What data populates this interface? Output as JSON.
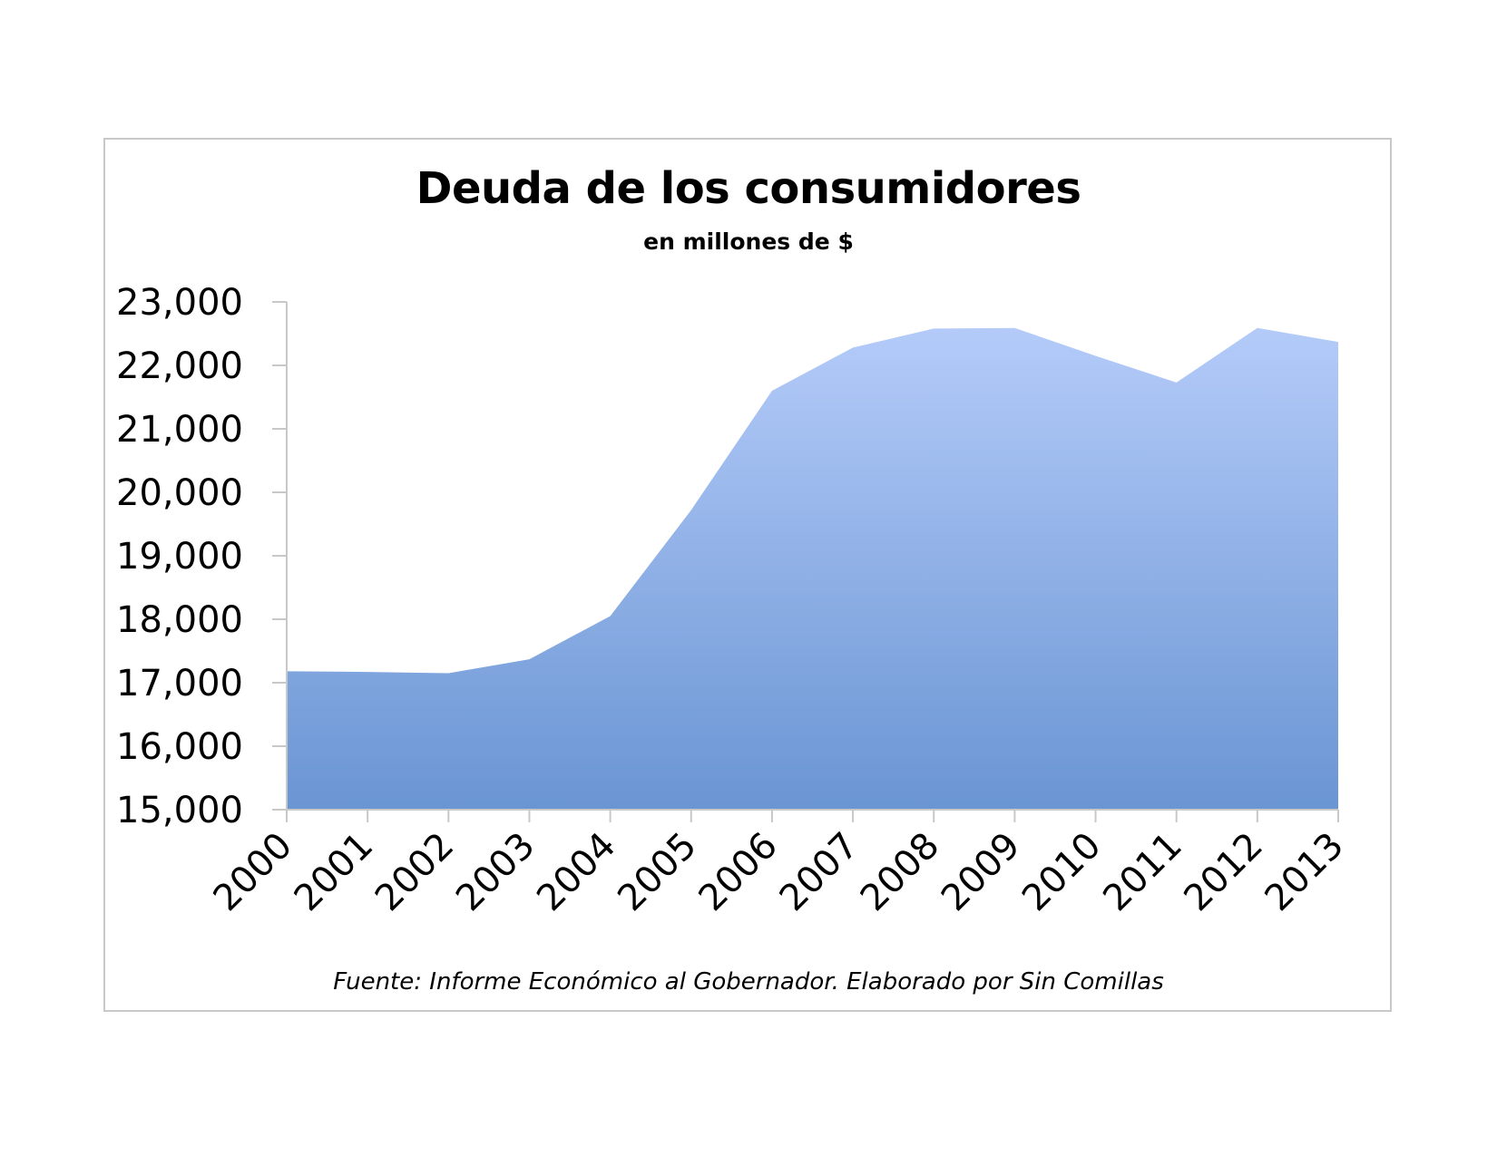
{
  "chart_data": {
    "type": "area",
    "title": "Deuda de los consumidores",
    "subtitle": "en millones de $",
    "source": "Fuente: Informe Económico al Gobernador. Elaborado por Sin Comillas",
    "xlabel": "",
    "ylabel": "",
    "categories": [
      "2000",
      "2001",
      "2002",
      "2003",
      "2004",
      "2005",
      "2006",
      "2007",
      "2008",
      "2009",
      "2010",
      "2011",
      "2012",
      "2013"
    ],
    "values": [
      17180,
      17170,
      17150,
      17370,
      18050,
      19720,
      21600,
      22280,
      22580,
      22590,
      22150,
      21730,
      22590,
      22370
    ],
    "ylim": [
      15000,
      23000
    ],
    "yticks": [
      "15,000",
      "16,000",
      "17,000",
      "18,000",
      "19,000",
      "20,000",
      "21,000",
      "22,000",
      "23,000"
    ],
    "grid": false,
    "legend": "none",
    "colors": {
      "fill_top": "#b4cbf9",
      "fill_bottom": "#6a95d3",
      "axis": "#c8c8c8"
    }
  }
}
